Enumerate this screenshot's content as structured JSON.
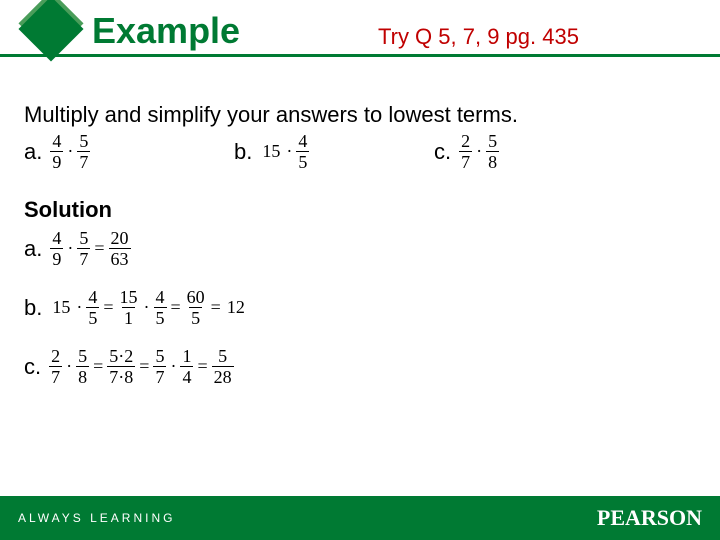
{
  "colors": {
    "brand_green": "#007A33",
    "brand_green_light": "#4a9d5a",
    "title_color": "#007A33",
    "tryq_color": "#c00000",
    "footer_bg": "#007A33",
    "footer_text": "#ffffff",
    "rule_color": "#007A33",
    "body_text": "#000000"
  },
  "header": {
    "title": "Example",
    "try_text": "Try Q 5, 7, 9   pg. 435"
  },
  "instruction": "Multiply and simplify your answers to lowest terms.",
  "problems": {
    "a": {
      "label": "a.",
      "expr": [
        {
          "t": "frac",
          "n": "4",
          "d": "9"
        },
        {
          "t": "op",
          "v": "·"
        },
        {
          "t": "frac",
          "n": "5",
          "d": "7"
        }
      ]
    },
    "b": {
      "label": "b.",
      "expr": [
        {
          "t": "whole",
          "v": "15"
        },
        {
          "t": "op",
          "v": "·"
        },
        {
          "t": "frac",
          "n": "4",
          "d": "5"
        }
      ]
    },
    "c": {
      "label": "c.",
      "expr": [
        {
          "t": "frac",
          "n": "2",
          "d": "7"
        },
        {
          "t": "op",
          "v": "·"
        },
        {
          "t": "frac",
          "n": "5",
          "d": "8"
        }
      ]
    }
  },
  "solution_label": "Solution",
  "solutions": {
    "a": {
      "label": "a.",
      "expr": [
        {
          "t": "frac",
          "n": "4",
          "d": "9"
        },
        {
          "t": "op",
          "v": "·"
        },
        {
          "t": "frac",
          "n": "5",
          "d": "7"
        },
        {
          "t": "op",
          "v": "="
        },
        {
          "t": "frac",
          "n": "20",
          "d": "63"
        }
      ]
    },
    "b": {
      "label": "b.",
      "expr": [
        {
          "t": "whole",
          "v": "15"
        },
        {
          "t": "op",
          "v": "·"
        },
        {
          "t": "frac",
          "n": "4",
          "d": "5"
        },
        {
          "t": "op",
          "v": "="
        },
        {
          "t": "frac",
          "n": "15",
          "d": "1"
        },
        {
          "t": "op",
          "v": "·"
        },
        {
          "t": "frac",
          "n": "4",
          "d": "5"
        },
        {
          "t": "op",
          "v": "="
        },
        {
          "t": "frac",
          "n": "60",
          "d": "5"
        },
        {
          "t": "op",
          "v": "="
        },
        {
          "t": "whole",
          "v": "12"
        }
      ]
    },
    "c": {
      "label": "c.",
      "expr": [
        {
          "t": "frac",
          "n": "2",
          "d": "7"
        },
        {
          "t": "op",
          "v": "·"
        },
        {
          "t": "frac",
          "n": "5",
          "d": "8"
        },
        {
          "t": "op",
          "v": "="
        },
        {
          "t": "frac",
          "n": "5·2",
          "d": "7·8"
        },
        {
          "t": "op",
          "v": "="
        },
        {
          "t": "frac",
          "n": "5",
          "d": "7"
        },
        {
          "t": "op",
          "v": "·"
        },
        {
          "t": "frac",
          "n": "1",
          "d": "4"
        },
        {
          "t": "op",
          "v": "="
        },
        {
          "t": "frac",
          "n": "5",
          "d": "28"
        }
      ]
    }
  },
  "footer": {
    "left": "ALWAYS LEARNING",
    "right": "PEARSON"
  }
}
